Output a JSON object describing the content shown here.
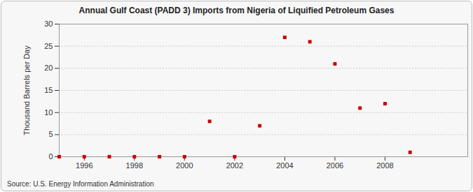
{
  "chart_data": {
    "type": "scatter",
    "title": "Annual Gulf Coast (PADD 3) Imports from Nigeria of Liquified Petroleum Gases",
    "y_label": "Thousand Barrels per Day",
    "caption": "Source: U.S. Energy Information Administration",
    "x": [
      1995,
      1996,
      1997,
      1998,
      1999,
      2000,
      2001,
      2002,
      2003,
      2004,
      2005,
      2006,
      2007,
      2008,
      2009
    ],
    "values": [
      0,
      0,
      0,
      0,
      0,
      0,
      8,
      0,
      7,
      27,
      26,
      21,
      11,
      12,
      1
    ],
    "color": "#cc0000",
    "marker": "square",
    "xlim": [
      1995,
      2011.3
    ],
    "xticks": [
      1996,
      1998,
      2000,
      2002,
      2004,
      2006,
      2008
    ],
    "ylim": [
      0,
      30
    ],
    "yticks": [
      0,
      5,
      10,
      15,
      20,
      25,
      30
    ],
    "grid": true
  }
}
